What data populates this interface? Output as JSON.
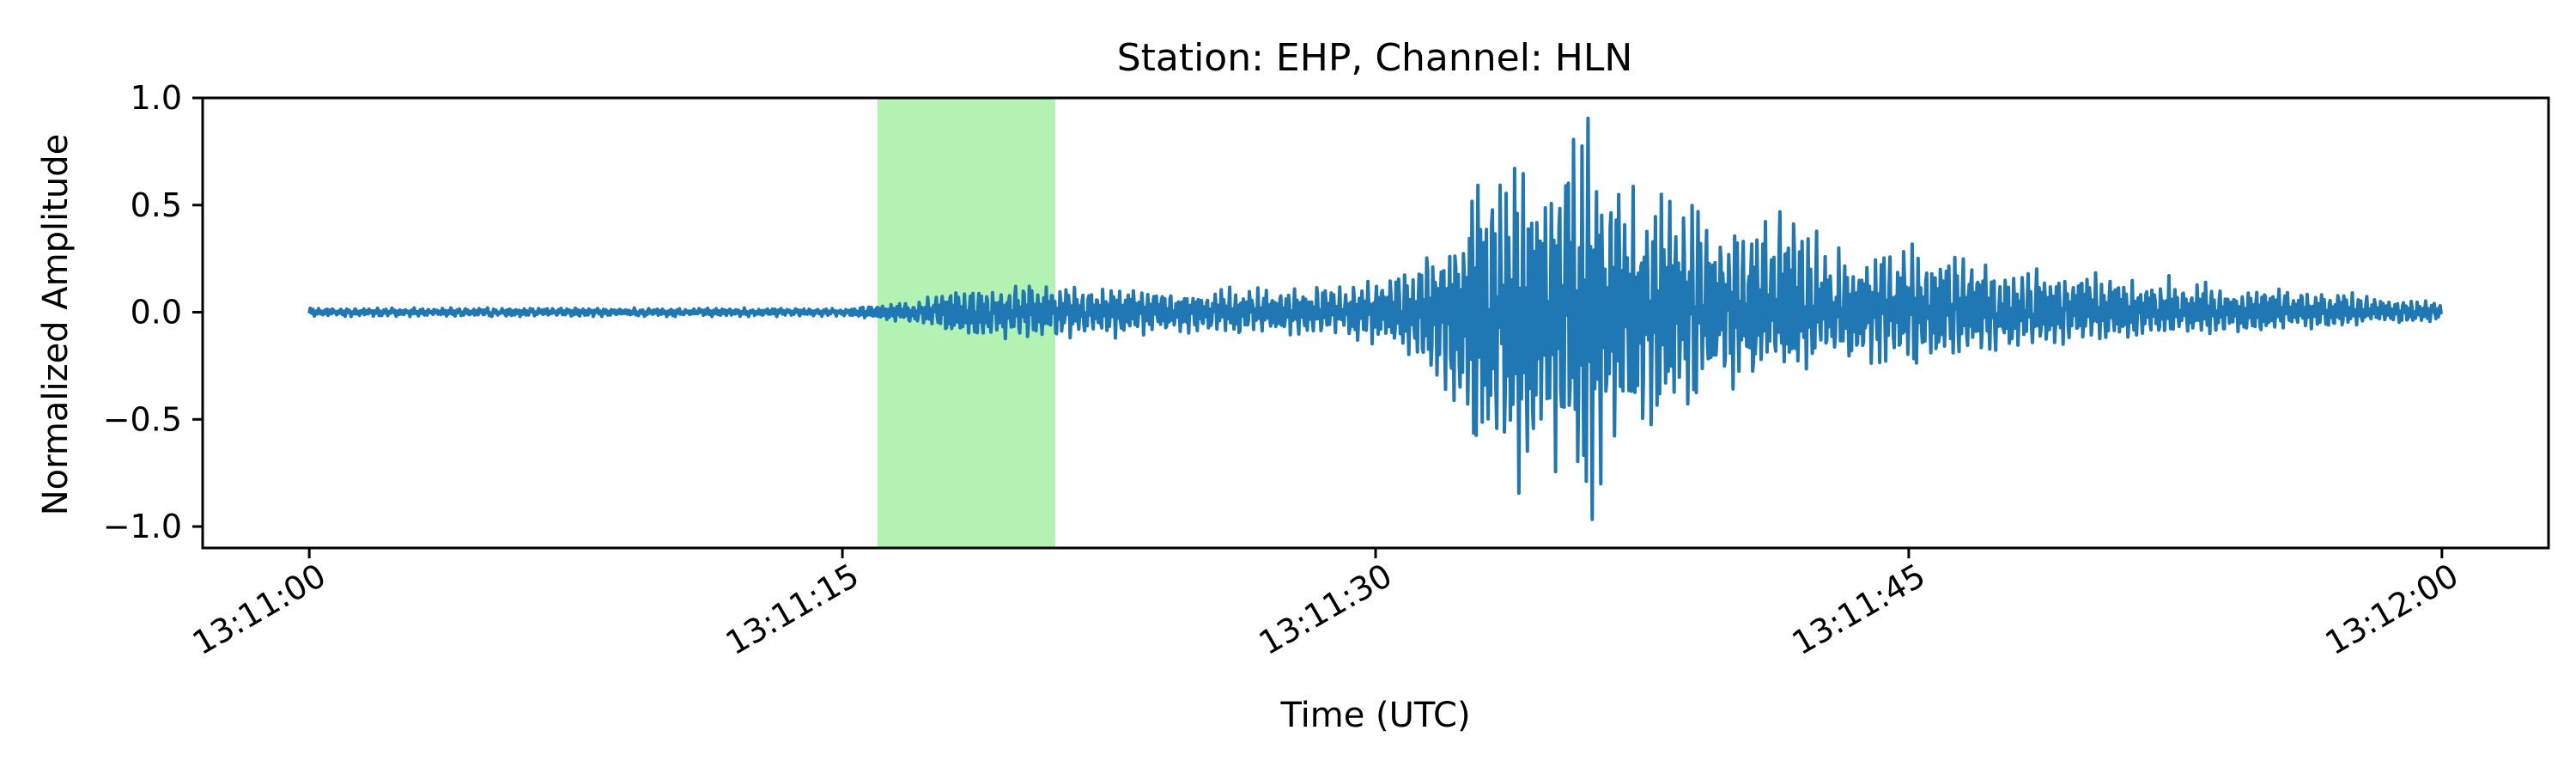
{
  "chart_data": {
    "type": "line",
    "title": "Station: EHP, Channel: HLN",
    "xlabel": "Time (UTC)",
    "ylabel": "Normalized Amplitude",
    "x_ticks": [
      "13:11:00",
      "13:11:15",
      "13:11:30",
      "13:11:45",
      "13:12:00"
    ],
    "y_ticks": [
      "1.0",
      "0.5",
      "0.0",
      "−0.5",
      "−1.0"
    ],
    "xlim": [
      "13:10:57",
      "13:12:03"
    ],
    "ylim": [
      -1.1,
      1.0
    ],
    "grid": false,
    "legend": "none",
    "highlight_window": {
      "start": "13:11:16",
      "end": "13:11:21",
      "color": "#b3f2b3"
    },
    "series": [
      {
        "color": "#1f77b4",
        "x": [
          "13:11:00",
          "13:11:15",
          "13:11:17",
          "13:11:18",
          "13:11:19",
          "13:11:20",
          "13:11:21",
          "13:11:22",
          "13:11:23",
          "13:11:24",
          "13:11:25",
          "13:11:26",
          "13:11:27",
          "13:11:28",
          "13:11:29",
          "13:11:30",
          "13:11:31",
          "13:11:32",
          "13:11:33",
          "13:11:34",
          "13:11:35",
          "13:11:36",
          "13:11:37",
          "13:11:38",
          "13:11:39",
          "13:11:40",
          "13:11:41",
          "13:11:42",
          "13:11:43",
          "13:11:44",
          "13:11:45",
          "13:11:46",
          "13:11:47",
          "13:11:48",
          "13:11:49",
          "13:11:50",
          "13:11:51",
          "13:11:52",
          "13:11:53",
          "13:11:54",
          "13:11:55",
          "13:11:56",
          "13:11:57",
          "13:11:58",
          "13:11:59",
          "13:12:00"
        ],
        "envelope_max": [
          0.02,
          0.02,
          0.05,
          0.1,
          0.12,
          0.14,
          0.13,
          0.13,
          0.12,
          0.11,
          0.1,
          0.12,
          0.11,
          0.13,
          0.12,
          0.15,
          0.2,
          0.35,
          0.65,
          0.72,
          0.88,
          0.92,
          0.6,
          0.55,
          0.55,
          0.42,
          0.48,
          0.45,
          0.3,
          0.3,
          0.32,
          0.3,
          0.25,
          0.22,
          0.2,
          0.2,
          0.15,
          0.18,
          0.15,
          0.12,
          0.12,
          0.1,
          0.1,
          0.08,
          0.07,
          0.05
        ],
        "envelope_min": [
          -0.02,
          -0.02,
          -0.05,
          -0.1,
          -0.12,
          -0.13,
          -0.12,
          -0.12,
          -0.12,
          -0.1,
          -0.1,
          -0.12,
          -0.1,
          -0.12,
          -0.12,
          -0.15,
          -0.2,
          -0.4,
          -0.78,
          -0.85,
          -0.75,
          -1.0,
          -0.65,
          -0.55,
          -0.45,
          -0.42,
          -0.3,
          -0.3,
          -0.25,
          -0.28,
          -0.28,
          -0.2,
          -0.2,
          -0.18,
          -0.15,
          -0.15,
          -0.12,
          -0.12,
          -0.1,
          -0.1,
          -0.1,
          -0.08,
          -0.08,
          -0.06,
          -0.05,
          -0.04
        ]
      }
    ]
  }
}
